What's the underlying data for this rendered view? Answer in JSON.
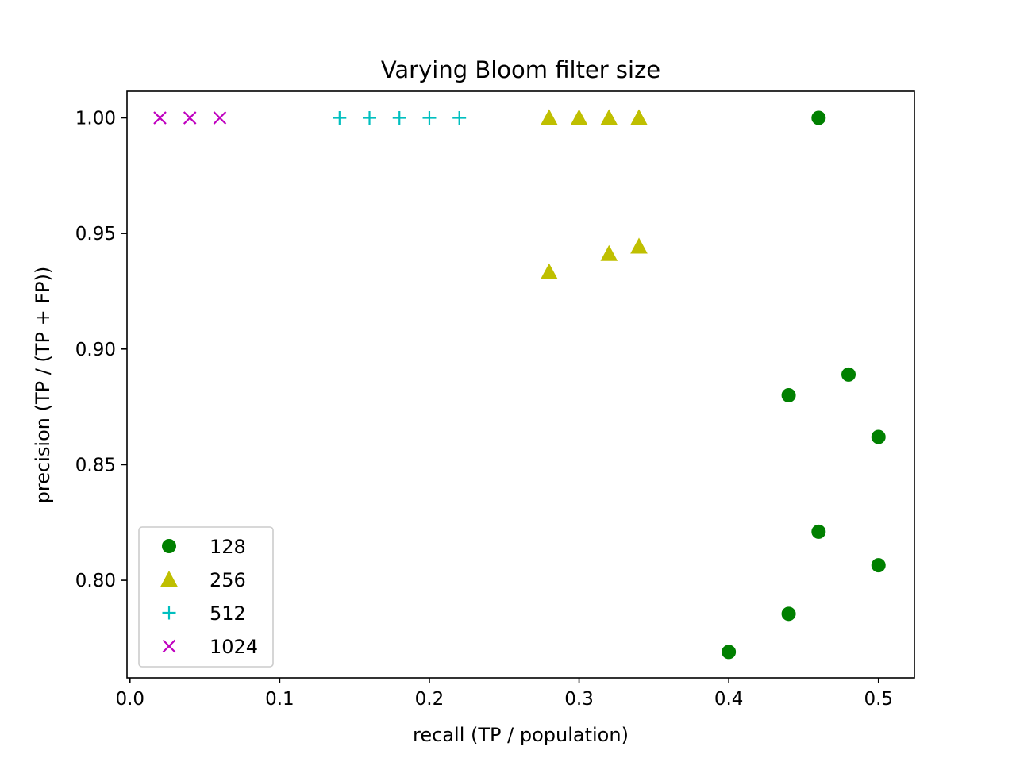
{
  "chart_data": {
    "type": "scatter",
    "title": "Varying Bloom filter size",
    "xlabel": "recall (TP / population)",
    "ylabel": "precision (TP / (TP + FP))",
    "xlim": [
      -0.002,
      0.524
    ],
    "ylim": [
      0.7578,
      1.0115
    ],
    "xticks": [
      0.0,
      0.1,
      0.2,
      0.3,
      0.4,
      0.5
    ],
    "xtick_labels": [
      "0.0",
      "0.1",
      "0.2",
      "0.3",
      "0.4",
      "0.5"
    ],
    "yticks": [
      0.8,
      0.85,
      0.9,
      0.95,
      1.0
    ],
    "ytick_labels": [
      "0.80",
      "0.85",
      "0.90",
      "0.95",
      "1.00"
    ],
    "grid": false,
    "legend_position": "lower-left",
    "series": [
      {
        "name": "128",
        "marker": "circle",
        "color": "#008000",
        "points": [
          {
            "x": 0.46,
            "y": 1.0
          },
          {
            "x": 0.48,
            "y": 0.889
          },
          {
            "x": 0.44,
            "y": 0.88
          },
          {
            "x": 0.5,
            "y": 0.862
          },
          {
            "x": 0.46,
            "y": 0.821
          },
          {
            "x": 0.5,
            "y": 0.8065
          },
          {
            "x": 0.44,
            "y": 0.7855
          },
          {
            "x": 0.4,
            "y": 0.769
          }
        ]
      },
      {
        "name": "256",
        "marker": "triangle",
        "color": "#bfbf00",
        "points": [
          {
            "x": 0.28,
            "y": 1.0
          },
          {
            "x": 0.3,
            "y": 1.0
          },
          {
            "x": 0.32,
            "y": 1.0
          },
          {
            "x": 0.34,
            "y": 1.0
          },
          {
            "x": 0.28,
            "y": 0.9333
          },
          {
            "x": 0.32,
            "y": 0.9412
          },
          {
            "x": 0.34,
            "y": 0.9444
          }
        ]
      },
      {
        "name": "512",
        "marker": "plus",
        "color": "#00bfbf",
        "points": [
          {
            "x": 0.14,
            "y": 1.0
          },
          {
            "x": 0.16,
            "y": 1.0
          },
          {
            "x": 0.18,
            "y": 1.0
          },
          {
            "x": 0.2,
            "y": 1.0
          },
          {
            "x": 0.22,
            "y": 1.0
          }
        ]
      },
      {
        "name": "1024",
        "marker": "x",
        "color": "#bf00bf",
        "points": [
          {
            "x": 0.02,
            "y": 1.0
          },
          {
            "x": 0.04,
            "y": 1.0
          },
          {
            "x": 0.06,
            "y": 1.0
          }
        ]
      }
    ]
  }
}
